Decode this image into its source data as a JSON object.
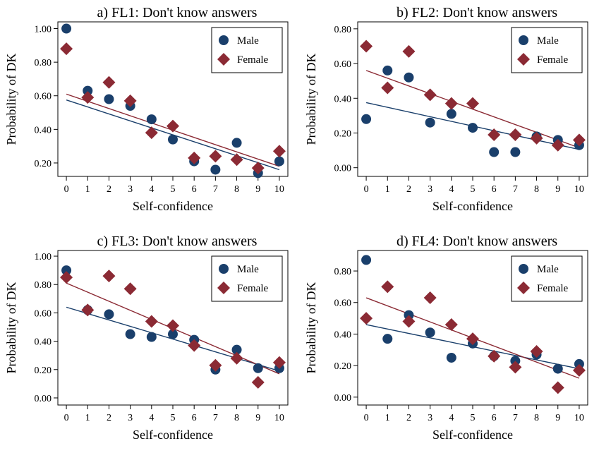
{
  "colors": {
    "male": "#1a3f6b",
    "female": "#8b2a34",
    "frame": "#000000"
  },
  "chart_data": [
    {
      "type": "scatter",
      "title": "a) FL1: Don't know answers",
      "xlabel": "Self-confidence",
      "ylabel": "Probability of DK",
      "xlim": [
        -0.4,
        10.4
      ],
      "ylim": [
        0.12,
        1.04
      ],
      "yticks": [
        0.2,
        0.4,
        0.6,
        0.8,
        1.0
      ],
      "ytick_labels": [
        "0.20",
        "0.40",
        "0.60",
        "0.80",
        "1.00"
      ],
      "xticks": [
        0,
        1,
        2,
        3,
        4,
        5,
        6,
        7,
        8,
        9,
        10
      ],
      "xtick_labels": [
        "0",
        "1",
        "2",
        "3",
        "4",
        "5",
        "6",
        "7",
        "8",
        "9",
        "10"
      ],
      "legend": {
        "position": "top-right",
        "entries": [
          "Male",
          "Female"
        ]
      },
      "series": [
        {
          "name": "Male",
          "marker": "circle",
          "x": [
            0,
            1,
            2,
            3,
            4,
            5,
            6,
            7,
            8,
            9,
            10
          ],
          "y": [
            1.0,
            0.63,
            0.58,
            0.54,
            0.46,
            0.34,
            0.21,
            0.16,
            0.32,
            0.14,
            0.21
          ],
          "fit": [
            0.575,
            0.16
          ]
        },
        {
          "name": "Female",
          "marker": "diamond",
          "x": [
            0,
            1,
            2,
            3,
            4,
            5,
            6,
            7,
            8,
            9,
            10
          ],
          "y": [
            0.88,
            0.59,
            0.68,
            0.57,
            0.38,
            0.42,
            0.23,
            0.24,
            0.22,
            0.17,
            0.27
          ],
          "fit": [
            0.61,
            0.18
          ]
        }
      ]
    },
    {
      "type": "scatter",
      "title": "b) FL2: Don't know answers",
      "xlabel": "Self-confidence",
      "ylabel": "Probability of DK",
      "xlim": [
        -0.4,
        10.4
      ],
      "ylim": [
        -0.05,
        0.84
      ],
      "yticks": [
        0.0,
        0.2,
        0.4,
        0.6,
        0.8
      ],
      "ytick_labels": [
        "0.00",
        "0.20",
        "0.40",
        "0.60",
        "0.80"
      ],
      "xticks": [
        0,
        1,
        2,
        3,
        4,
        5,
        6,
        7,
        8,
        9,
        10
      ],
      "xtick_labels": [
        "0",
        "1",
        "2",
        "3",
        "4",
        "5",
        "6",
        "7",
        "8",
        "9",
        "10"
      ],
      "legend": {
        "position": "top-right",
        "entries": [
          "Male",
          "Female"
        ]
      },
      "series": [
        {
          "name": "Male",
          "marker": "circle",
          "x": [
            0,
            1,
            2,
            3,
            4,
            5,
            6,
            7,
            8,
            9,
            10
          ],
          "y": [
            0.28,
            0.56,
            0.52,
            0.26,
            0.31,
            0.23,
            0.09,
            0.09,
            0.18,
            0.16,
            0.13
          ],
          "fit": [
            0.375,
            0.105
          ]
        },
        {
          "name": "Female",
          "marker": "diamond",
          "x": [
            0,
            1,
            2,
            3,
            4,
            5,
            6,
            7,
            8,
            9,
            10
          ],
          "y": [
            0.7,
            0.46,
            0.67,
            0.42,
            0.37,
            0.37,
            0.19,
            0.19,
            0.17,
            0.13,
            0.16
          ],
          "fit": [
            0.56,
            0.115
          ]
        }
      ]
    },
    {
      "type": "scatter",
      "title": "c) FL3: Don't know answers",
      "xlabel": "Self-confidence",
      "ylabel": "Probability of DK",
      "xlim": [
        -0.4,
        10.4
      ],
      "ylim": [
        -0.05,
        1.04
      ],
      "yticks": [
        0.0,
        0.2,
        0.4,
        0.6,
        0.8,
        1.0
      ],
      "ytick_labels": [
        "0.00",
        "0.20",
        "0.40",
        "0.60",
        "0.80",
        "1.00"
      ],
      "xticks": [
        0,
        1,
        2,
        3,
        4,
        5,
        6,
        7,
        8,
        9,
        10
      ],
      "xtick_labels": [
        "0",
        "1",
        "2",
        "3",
        "4",
        "5",
        "6",
        "7",
        "8",
        "9",
        "10"
      ],
      "legend": {
        "position": "top-right",
        "entries": [
          "Male",
          "Female"
        ]
      },
      "series": [
        {
          "name": "Male",
          "marker": "circle",
          "x": [
            0,
            1,
            2,
            3,
            4,
            5,
            6,
            7,
            8,
            9,
            10
          ],
          "y": [
            0.9,
            0.62,
            0.59,
            0.45,
            0.43,
            0.45,
            0.41,
            0.2,
            0.34,
            0.21,
            0.21
          ],
          "fit": [
            0.64,
            0.19
          ]
        },
        {
          "name": "Female",
          "marker": "diamond",
          "x": [
            0,
            1,
            2,
            3,
            4,
            5,
            6,
            7,
            8,
            9,
            10
          ],
          "y": [
            0.85,
            0.62,
            0.86,
            0.77,
            0.54,
            0.51,
            0.37,
            0.23,
            0.28,
            0.11,
            0.25
          ],
          "fit": [
            0.81,
            0.17
          ]
        }
      ]
    },
    {
      "type": "scatter",
      "title": "d) FL4: Don't know answers",
      "xlabel": "Self-confidence",
      "ylabel": "Probability of DK",
      "xlim": [
        -0.4,
        10.4
      ],
      "ylim": [
        -0.05,
        0.93
      ],
      "yticks": [
        0.0,
        0.2,
        0.4,
        0.6,
        0.8
      ],
      "ytick_labels": [
        "0.00",
        "0.20",
        "0.40",
        "0.60",
        "0.80"
      ],
      "xticks": [
        0,
        1,
        2,
        3,
        4,
        5,
        6,
        7,
        8,
        9,
        10
      ],
      "xtick_labels": [
        "0",
        "1",
        "2",
        "3",
        "4",
        "5",
        "6",
        "7",
        "8",
        "9",
        "10"
      ],
      "legend": {
        "position": "top-right",
        "entries": [
          "Male",
          "Female"
        ]
      },
      "series": [
        {
          "name": "Male",
          "marker": "circle",
          "x": [
            0,
            1,
            2,
            3,
            4,
            5,
            6,
            7,
            8,
            9,
            10
          ],
          "y": [
            0.87,
            0.37,
            0.52,
            0.41,
            0.25,
            0.34,
            0.26,
            0.23,
            0.27,
            0.18,
            0.21
          ],
          "fit": [
            0.46,
            0.18
          ]
        },
        {
          "name": "Female",
          "marker": "diamond",
          "x": [
            0,
            1,
            2,
            3,
            4,
            5,
            6,
            7,
            8,
            9,
            10
          ],
          "y": [
            0.5,
            0.7,
            0.48,
            0.63,
            0.46,
            0.37,
            0.26,
            0.19,
            0.29,
            0.06,
            0.17
          ],
          "fit": [
            0.63,
            0.12
          ]
        }
      ]
    }
  ]
}
